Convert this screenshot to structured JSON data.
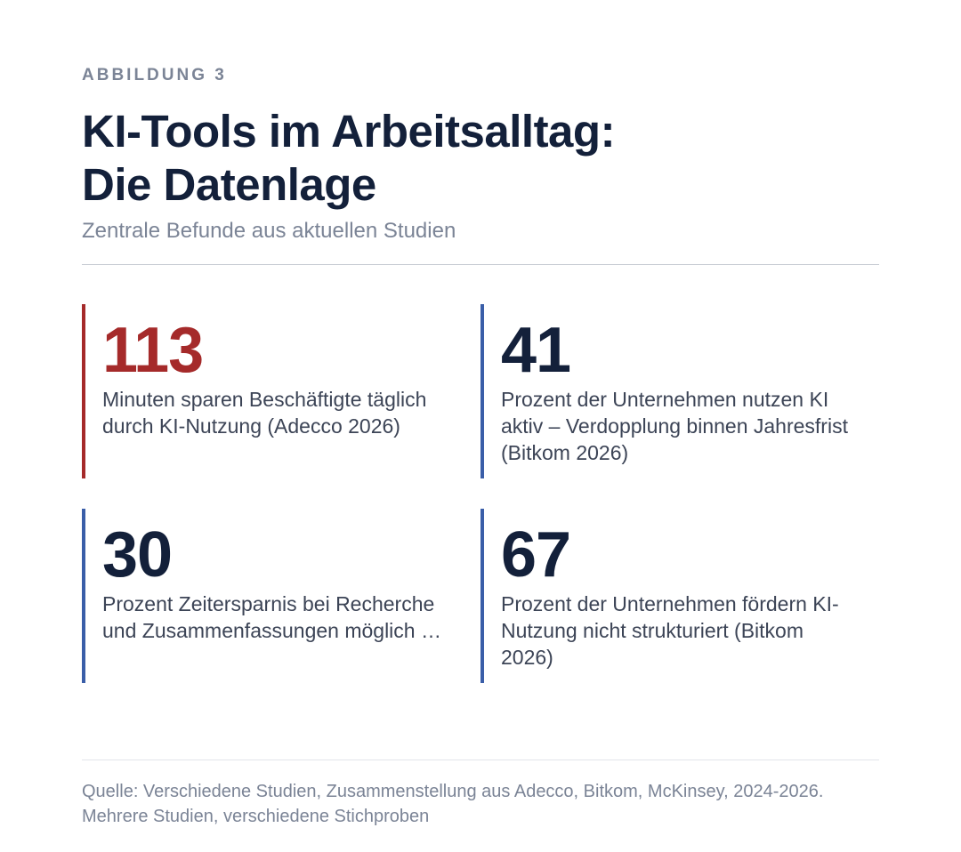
{
  "figure": {
    "kicker": "ABBILDUNG 3",
    "title_line1": "KI-Tools im Arbeitsalltag:",
    "title_line2": "Die Datenlage",
    "subtitle": "Zentrale Befunde aus aktuellen Studien",
    "source": "Quelle: Verschiedene Studien, Zusammenstellung aus Adecco, Bitkom, McKinsey, 2024-2026. Mehrere Studien, verschiedene Stichproben"
  },
  "chart_data": {
    "type": "table",
    "title": "KI-Tools im Arbeitsalltag: Die Datenlage",
    "subtitle": "Zentrale Befunde aus aktuellen Studien",
    "stats": [
      {
        "value": "113",
        "description": "Minuten sparen Beschäftigte täglich durch KI-Nutzung (Adecco 2026)",
        "value_color": "#a52a2a",
        "accent_color": "#a52a2a"
      },
      {
        "value": "41",
        "description": "Prozent der Unternehmen nutzen KI aktiv – Verdopplung binnen Jahresfrist (Bitkom 2026)",
        "value_color": "#13203a",
        "accent_color": "#3a5ea8"
      },
      {
        "value": "30",
        "description": "Prozent Zeitersparnis bei Recherche und Zusammenfassungen möglich …",
        "value_color": "#13203a",
        "accent_color": "#3a5ea8"
      },
      {
        "value": "67",
        "description": "Prozent der Unternehmen fördern KI-Nutzung nicht strukturiert (Bitkom 2026)",
        "value_color": "#13203a",
        "accent_color": "#3a5ea8"
      }
    ]
  }
}
